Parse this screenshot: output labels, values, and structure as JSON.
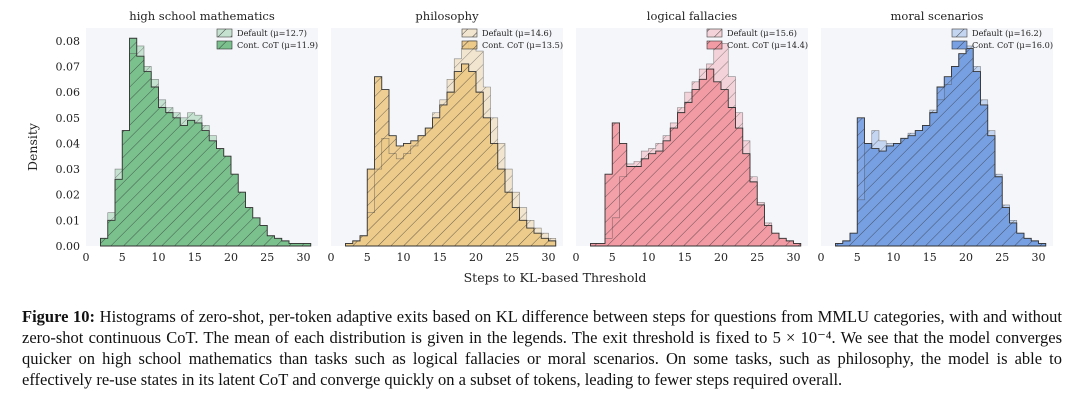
{
  "colors": {
    "panel_bg": "#f5f6fa",
    "hatch": "#333333"
  },
  "shared": {
    "xlabel": "Steps to KL-based Threshold",
    "ylabel": "Density",
    "xlim": [
      0,
      32
    ],
    "ylim": [
      0,
      0.085
    ],
    "xticks": [
      "0",
      "5",
      "10",
      "15",
      "20",
      "25",
      "30"
    ],
    "yticks": [
      "0.00",
      "0.01",
      "0.02",
      "0.03",
      "0.04",
      "0.05",
      "0.06",
      "0.07",
      "0.08"
    ],
    "bin_start": 2,
    "bin_width": 1
  },
  "chart_data": [
    {
      "type": "bar",
      "title": "high school mathematics",
      "color": "#6dbb82",
      "legend_default": "Default (μ=12.7)",
      "legend_cot": "Cont. CoT (μ=11.9)",
      "series": [
        {
          "name": "Default",
          "values": [
            0.003,
            0.013,
            0.03,
            0.045,
            0.075,
            0.078,
            0.07,
            0.065,
            0.057,
            0.054,
            0.052,
            0.05,
            0.052,
            0.051,
            0.047,
            0.043,
            0.038,
            0.035,
            0.028,
            0.021,
            0.015,
            0.011,
            0.008,
            0.004,
            0.003,
            0.002,
            0.001,
            0.001,
            0.001
          ]
        },
        {
          "name": "Cont. CoT",
          "values": [
            0.003,
            0.01,
            0.026,
            0.045,
            0.081,
            0.074,
            0.068,
            0.062,
            0.054,
            0.052,
            0.05,
            0.047,
            0.049,
            0.048,
            0.045,
            0.041,
            0.038,
            0.035,
            0.028,
            0.021,
            0.015,
            0.011,
            0.008,
            0.004,
            0.003,
            0.002,
            0.001,
            0.001,
            0.001
          ]
        }
      ]
    },
    {
      "type": "bar",
      "title": "philosophy",
      "color": "#ecc77f",
      "legend_default": "Default (μ=14.6)",
      "legend_cot": "Cont. CoT (μ=13.5)",
      "series": [
        {
          "name": "Default",
          "values": [
            0.001,
            0.002,
            0.004,
            0.013,
            0.03,
            0.042,
            0.036,
            0.034,
            0.036,
            0.039,
            0.043,
            0.046,
            0.052,
            0.057,
            0.065,
            0.073,
            0.077,
            0.08,
            0.076,
            0.062,
            0.05,
            0.04,
            0.03,
            0.021,
            0.015,
            0.01,
            0.007,
            0.005,
            0.003
          ]
        },
        {
          "name": "Cont. CoT",
          "values": [
            0.001,
            0.002,
            0.004,
            0.03,
            0.066,
            0.061,
            0.043,
            0.039,
            0.04,
            0.041,
            0.043,
            0.046,
            0.05,
            0.055,
            0.06,
            0.068,
            0.071,
            0.068,
            0.06,
            0.05,
            0.04,
            0.03,
            0.021,
            0.015,
            0.01,
            0.007,
            0.005,
            0.003,
            0.002
          ]
        }
      ]
    },
    {
      "type": "bar",
      "title": "logical fallacies",
      "color": "#f2919a",
      "legend_default": "Default (μ=15.6)",
      "legend_cot": "Cont. CoT (μ=14.4)",
      "series": [
        {
          "name": "Default",
          "values": [
            0.001,
            0.001,
            0.003,
            0.011,
            0.027,
            0.032,
            0.033,
            0.037,
            0.038,
            0.04,
            0.043,
            0.048,
            0.054,
            0.06,
            0.064,
            0.069,
            0.071,
            0.077,
            0.079,
            0.066,
            0.052,
            0.041,
            0.027,
            0.017,
            0.009,
            0.005,
            0.003,
            0.002,
            0.001
          ]
        },
        {
          "name": "Cont. CoT",
          "values": [
            0.001,
            0.001,
            0.028,
            0.048,
            0.04,
            0.031,
            0.031,
            0.034,
            0.036,
            0.037,
            0.041,
            0.046,
            0.052,
            0.056,
            0.061,
            0.065,
            0.069,
            0.064,
            0.061,
            0.054,
            0.046,
            0.036,
            0.025,
            0.016,
            0.008,
            0.005,
            0.003,
            0.002,
            0.001
          ]
        }
      ]
    },
    {
      "type": "bar",
      "title": "moral scenarios",
      "color": "#6a97e0",
      "legend_default": "Default (μ=16.2)",
      "legend_cot": "Cont. CoT (μ=16.0)",
      "series": [
        {
          "name": "Default",
          "values": [
            0.001,
            0.002,
            0.005,
            0.018,
            0.04,
            0.045,
            0.041,
            0.04,
            0.04,
            0.042,
            0.044,
            0.045,
            0.047,
            0.053,
            0.057,
            0.063,
            0.07,
            0.075,
            0.078,
            0.07,
            0.057,
            0.045,
            0.028,
            0.016,
            0.01,
            0.005,
            0.003,
            0.002,
            0.001
          ]
        },
        {
          "name": "Cont. CoT",
          "values": [
            0.001,
            0.002,
            0.005,
            0.05,
            0.04,
            0.038,
            0.037,
            0.039,
            0.04,
            0.042,
            0.043,
            0.045,
            0.047,
            0.052,
            0.062,
            0.066,
            0.07,
            0.075,
            0.077,
            0.068,
            0.055,
            0.043,
            0.027,
            0.015,
            0.009,
            0.005,
            0.003,
            0.002,
            0.001
          ]
        }
      ]
    }
  ],
  "caption": {
    "label": "Figure 10:",
    "text": "Histograms of zero-shot, per-token adaptive exits based on KL difference between steps for questions from MMLU categories, with and without zero-shot continuous CoT. The mean of each distribution is given in the legends. The exit threshold is fixed to 5 × 10⁻⁴. We see that the model converges quicker on high school mathematics than tasks such as logical fallacies or moral scenarios. On some tasks, such as philosophy, the model is able to effectively re-use states in its latent CoT and converge quickly on a subset of tokens, leading to fewer steps required overall."
  }
}
